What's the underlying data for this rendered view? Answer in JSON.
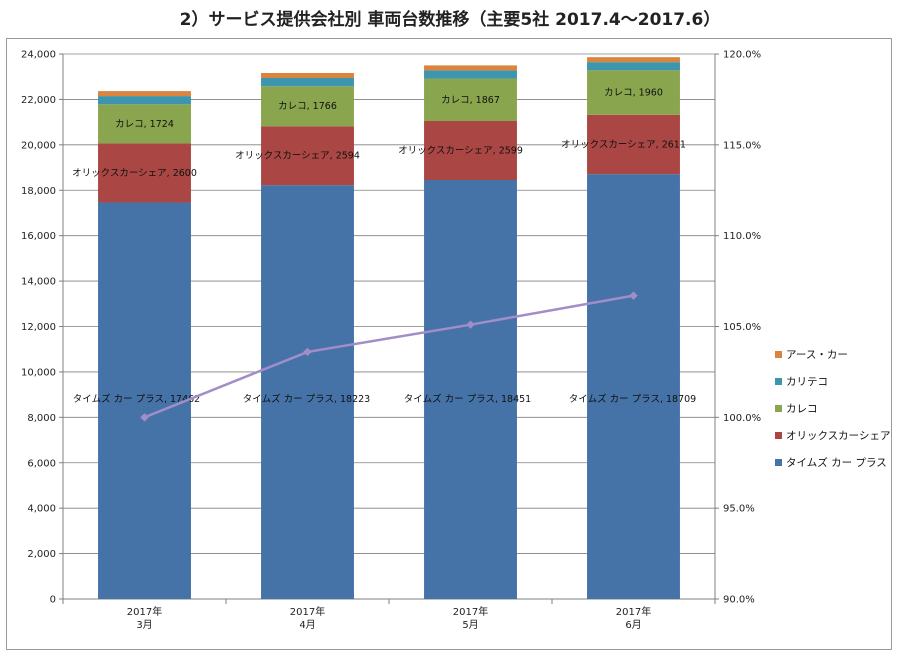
{
  "title": "2）サービス提供会社別 車両台数推移（主要5社 2017.4～2017.6）",
  "chart_data": {
    "type": "bar",
    "stacked": true,
    "categories": [
      {
        "year": "2017年",
        "month": "3月"
      },
      {
        "year": "2017年",
        "month": "4月"
      },
      {
        "year": "2017年",
        "month": "5月"
      },
      {
        "year": "2017年",
        "month": "6月"
      }
    ],
    "series": [
      {
        "name": "タイムズ カー プラス",
        "color": "#4572A7",
        "values": [
          17462,
          18223,
          18451,
          18709
        ],
        "label_prefix": "タイムズ カー プラス, "
      },
      {
        "name": "オリックスカーシェア",
        "color": "#AA4643",
        "values": [
          2600,
          2594,
          2599,
          2611
        ],
        "label_prefix": "オリックスカーシェア, "
      },
      {
        "name": "カレコ",
        "color": "#89A54E",
        "values": [
          1724,
          1766,
          1867,
          1960
        ],
        "label_prefix": "カレコ, "
      },
      {
        "name": "カリテコ",
        "color": "#3D96AE",
        "values": [
          360,
          360,
          360,
          360
        ]
      },
      {
        "name": "アース・カー",
        "color": "#DB843D",
        "values": [
          220,
          220,
          220,
          220
        ]
      }
    ],
    "line_series": {
      "color": "#A18DC7",
      "values": [
        100.0,
        103.6,
        105.1,
        106.7
      ],
      "axis": "right"
    },
    "y_left": {
      "min": 0,
      "max": 24000,
      "step": 2000,
      "ticks": [
        "0",
        "2,000",
        "4,000",
        "6,000",
        "8,000",
        "10,000",
        "12,000",
        "14,000",
        "16,000",
        "18,000",
        "20,000",
        "22,000",
        "24,000"
      ]
    },
    "y_right": {
      "min": 90,
      "max": 120,
      "step": 5,
      "ticks": [
        "90.0%",
        "95.0%",
        "100.0%",
        "105.0%",
        "110.0%",
        "115.0%",
        "120.0%"
      ]
    },
    "legend_position": "right",
    "legend_order": [
      "アース・カー",
      "カリテコ",
      "カレコ",
      "オリックスカーシェア",
      "タイムズ カー プラス"
    ],
    "grid": true
  }
}
